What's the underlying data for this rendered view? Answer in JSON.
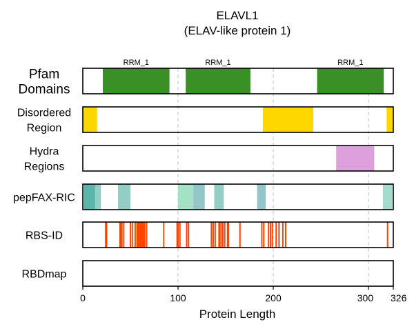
{
  "figure": {
    "title_line1": "ELAVL1",
    "title_line2": "(ELAV-like protein 1)",
    "xlabel": "Protein Length"
  },
  "chart_data": {
    "type": "feature-tracks",
    "protein_length": 326,
    "xlim": [
      0,
      326
    ],
    "xticks": [
      0,
      100,
      200,
      300,
      326
    ],
    "gridlines": [
      100,
      200,
      300
    ],
    "tracks": [
      {
        "name_lines": [
          "Pfam",
          "Domains"
        ],
        "features": [
          {
            "start": 21,
            "end": 91,
            "color": "#3a8f27",
            "label": "RRM_1"
          },
          {
            "start": 108,
            "end": 176,
            "color": "#3a8f27",
            "label": "RRM_1"
          },
          {
            "start": 246,
            "end": 316,
            "color": "#3a8f27",
            "label": "RRM_1"
          }
        ]
      },
      {
        "name_lines": [
          "Disordered",
          "Region"
        ],
        "features": [
          {
            "start": 0,
            "end": 15,
            "color": "#ffd700"
          },
          {
            "start": 189,
            "end": 242,
            "color": "#ffd700"
          },
          {
            "start": 319,
            "end": 326,
            "color": "#ffd700"
          }
        ]
      },
      {
        "name_lines": [
          "Hydra",
          "Regions"
        ],
        "features": [
          {
            "start": 266,
            "end": 306,
            "color": "#dda0dd"
          }
        ]
      },
      {
        "name_lines": [
          "pepFAX-RIC"
        ],
        "features": [
          {
            "start": 1,
            "end": 13,
            "color": "#5bb5aa"
          },
          {
            "start": 13,
            "end": 19,
            "color": "#92cdc6"
          },
          {
            "start": 37,
            "end": 50,
            "color": "#92cdc6"
          },
          {
            "start": 100,
            "end": 116,
            "color": "#a3e2c4"
          },
          {
            "start": 116,
            "end": 128,
            "color": "#92c6c9"
          },
          {
            "start": 138,
            "end": 148,
            "color": "#92cdc6"
          },
          {
            "start": 183,
            "end": 192,
            "color": "#92c6c9"
          },
          {
            "start": 315,
            "end": 325,
            "color": "#a3dccd"
          }
        ]
      },
      {
        "name_lines": [
          "RBS-ID"
        ],
        "color": "#ff4500",
        "sites": [
          24,
          25,
          39,
          40,
          41,
          43,
          50,
          52,
          55,
          57,
          58,
          59,
          60,
          61,
          62,
          63,
          64,
          65,
          67,
          85,
          99,
          100,
          102,
          109,
          111,
          135,
          137,
          139,
          143,
          144,
          146,
          147,
          149,
          152,
          153,
          165,
          188,
          190,
          195,
          197,
          199,
          203,
          206,
          210,
          213,
          320
        ]
      },
      {
        "name_lines": [
          "RBDmap"
        ],
        "features": []
      }
    ]
  }
}
